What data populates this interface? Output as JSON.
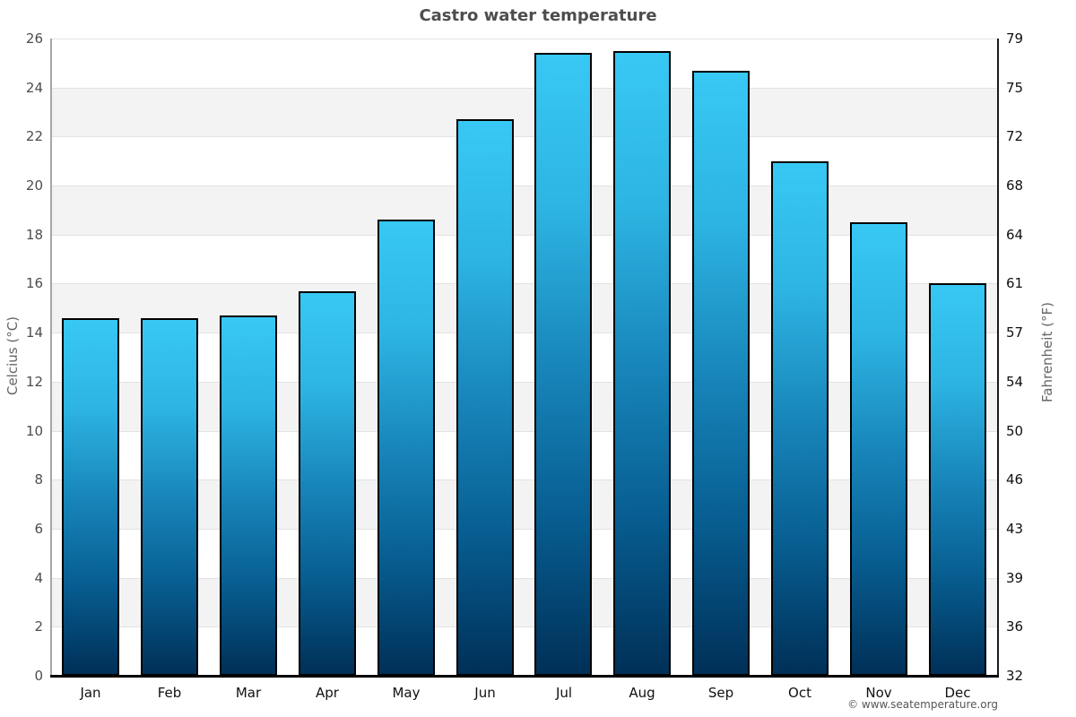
{
  "title": "Castro water temperature",
  "footer": "© www.seatemperature.org",
  "axes": {
    "left_label": "Celcius (°C)",
    "right_label": "Fahrenheit (°F)"
  },
  "chart_data": {
    "type": "bar",
    "title": "Castro water temperature",
    "categories": [
      "Jan",
      "Feb",
      "Mar",
      "Apr",
      "May",
      "Jun",
      "Jul",
      "Aug",
      "Sep",
      "Oct",
      "Nov",
      "Dec"
    ],
    "values": [
      14.6,
      14.6,
      14.7,
      15.7,
      18.6,
      22.7,
      25.4,
      25.5,
      24.7,
      21.0,
      18.5,
      16.0
    ],
    "series_name": "Water temperature",
    "unit": "°C",
    "xlabel": "",
    "ylabel_left": "Celcius (°C)",
    "ylabel_right": "Fahrenheit (°F)",
    "ylim": [
      0,
      26
    ],
    "y_tick_step": 2,
    "left_ticks_celsius": [
      0,
      2,
      4,
      6,
      8,
      10,
      12,
      14,
      16,
      18,
      20,
      22,
      24,
      26
    ],
    "right_ticks_fahrenheit": [
      32,
      36,
      39,
      43,
      46,
      50,
      54,
      57,
      61,
      64,
      68,
      72,
      75,
      79
    ],
    "grid": "alternating-horizontal-bands",
    "legend": "none"
  },
  "colors": {
    "background": "#ffffff",
    "band_gray": "#f3f3f3",
    "gridline": "#e2e2e2",
    "title_text": "#4d4d4d",
    "bar_top": "#38c8f4",
    "bar_upper_mid": "#2db4e2",
    "bar_mid": "#1886bb",
    "bar_lower_mid": "#075d90",
    "bar_bottom": "#003058",
    "bar_border": "#000000",
    "left_axis_line": "#a6a6a6",
    "right_axis_line": "#1a1a1a",
    "bottom_axis_line": "#000000"
  }
}
